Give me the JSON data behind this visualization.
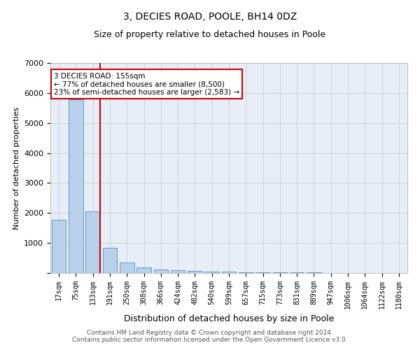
{
  "title": "3, DECIES ROAD, POOLE, BH14 0DZ",
  "subtitle": "Size of property relative to detached houses in Poole",
  "xlabel": "Distribution of detached houses by size in Poole",
  "ylabel": "Number of detached properties",
  "categories": [
    "17sqm",
    "75sqm",
    "133sqm",
    "191sqm",
    "250sqm",
    "308sqm",
    "366sqm",
    "424sqm",
    "482sqm",
    "540sqm",
    "599sqm",
    "657sqm",
    "715sqm",
    "773sqm",
    "831sqm",
    "889sqm",
    "947sqm",
    "1006sqm",
    "1064sqm",
    "1122sqm",
    "1180sqm"
  ],
  "values": [
    1780,
    5780,
    2060,
    840,
    340,
    195,
    115,
    100,
    80,
    55,
    40,
    35,
    30,
    25,
    20,
    15,
    10,
    8,
    5,
    4,
    3
  ],
  "bar_color": "#b8d0ea",
  "bar_edge_color": "#6699cc",
  "red_line_x": 2.43,
  "annotation_line1": "3 DECIES ROAD: 155sqm",
  "annotation_line2": "← 77% of detached houses are smaller (8,500)",
  "annotation_line3": "23% of semi-detached houses are larger (2,583) →",
  "annotation_box_color": "white",
  "annotation_box_edge_color": "#cc0000",
  "red_line_color": "#cc0000",
  "ylim": [
    0,
    7000
  ],
  "yticks": [
    0,
    1000,
    2000,
    3000,
    4000,
    5000,
    6000,
    7000
  ],
  "grid_color": "#cccccc",
  "bg_color": "#e8eef8",
  "footer_text": "Contains HM Land Registry data © Crown copyright and database right 2024.\nContains public sector information licensed under the Open Government Licence v3.0.",
  "title_fontsize": 10,
  "subtitle_fontsize": 9,
  "ylabel_fontsize": 8,
  "xlabel_fontsize": 9,
  "tick_fontsize": 7,
  "ytick_fontsize": 8,
  "footer_fontsize": 6.5
}
